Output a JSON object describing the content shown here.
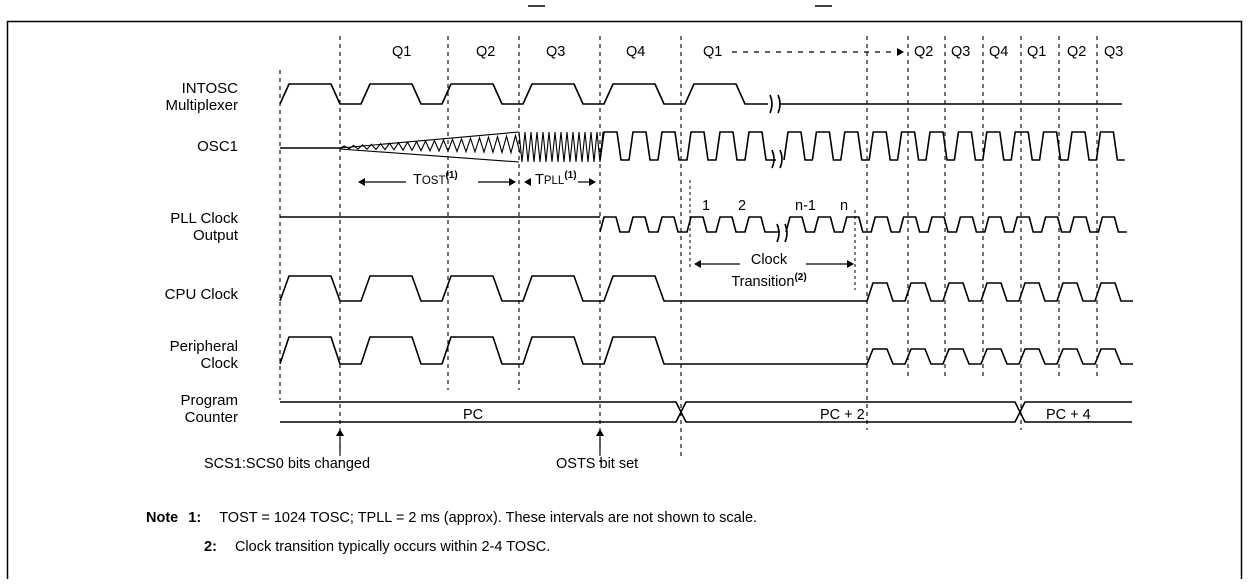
{
  "signals": {
    "intosc": [
      "INTOSC",
      "Multiplexer"
    ],
    "osc1": "OSC1",
    "pll": [
      "PLL Clock",
      "Output"
    ],
    "cpu": "CPU Clock",
    "peripheral": [
      "Peripheral",
      "Clock"
    ],
    "pc": [
      "Program",
      "Counter"
    ]
  },
  "q_labels_left": [
    "Q1",
    "Q2",
    "Q3",
    "Q4",
    "Q1"
  ],
  "q_labels_right": [
    "Q2",
    "Q3",
    "Q4",
    "Q1",
    "Q2",
    "Q3"
  ],
  "tost": {
    "main": "T",
    "small": "OST",
    "sup": "(1)"
  },
  "tpll": {
    "main": "T",
    "small": "PLL",
    "sup": "(1)"
  },
  "pll_counts": [
    "1",
    "2",
    "n-1",
    "n"
  ],
  "clock_transition": {
    "line1": "Clock",
    "line2": "Transition",
    "sup": "(2)"
  },
  "pc_values": [
    "PC",
    "PC + 2",
    "PC + 4"
  ],
  "events": {
    "scs": "SCS1:SCS0 bits changed",
    "osts": "OSTS bit set"
  },
  "notes": {
    "label": "Note",
    "n1_num": "1:",
    "n1_text": "TOST = 1024 TOSC; TPLL = 2 ms (approx). These intervals are not shown to scale.",
    "n2_num": "2:",
    "n2_text": "Clock transition typically occurs within 2-4 TOSC."
  }
}
